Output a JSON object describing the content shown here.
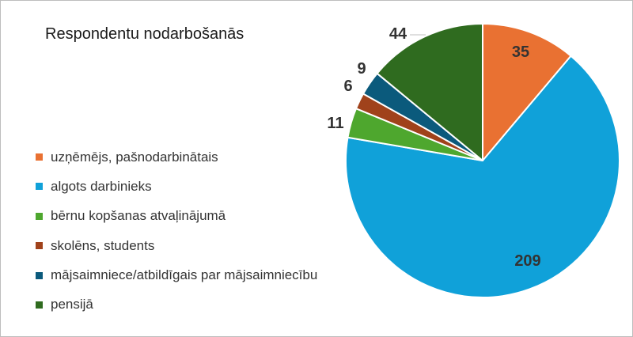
{
  "chart_data": {
    "type": "pie",
    "title": "Respondentu nodarbošanās",
    "legend_position": "left",
    "slices": [
      {
        "label": "uzņēmējs, pašnodarbinātais",
        "value": 35,
        "color": "#e97132"
      },
      {
        "label": "algots darbinieks",
        "value": 209,
        "color": "#10a1d9"
      },
      {
        "label": "bērnu kopšanas atvaļinājumā",
        "value": 11,
        "color": "#4ea72e"
      },
      {
        "label": "skolēns, students",
        "value": 6,
        "color": "#a0421b"
      },
      {
        "label": "mājsaimniece/atbildīgais par mājsaimniecību",
        "value": 9,
        "color": "#0b5a7c"
      },
      {
        "label": "pensijā",
        "value": 44,
        "color": "#2f6b1f"
      }
    ]
  }
}
